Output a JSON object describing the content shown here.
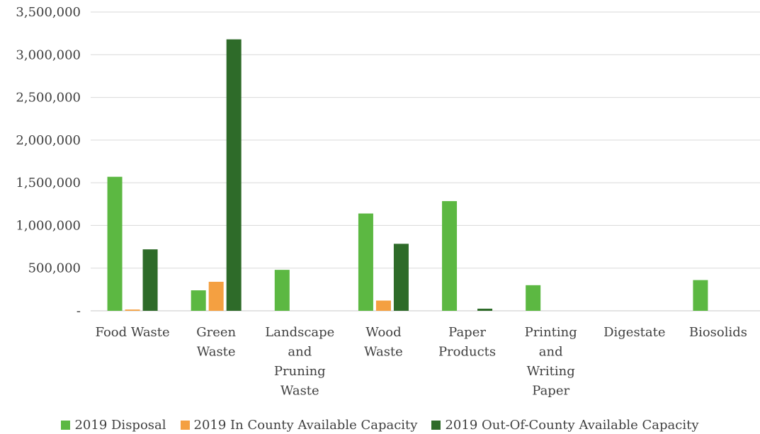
{
  "chart_data": {
    "type": "bar",
    "title": "",
    "xlabel": "",
    "ylabel": "",
    "categories": [
      [
        "Food Waste"
      ],
      [
        "Green",
        "Waste"
      ],
      [
        "Landscape",
        "and",
        "Pruning",
        "Waste"
      ],
      [
        "Wood",
        "Waste"
      ],
      [
        "Paper",
        "Products"
      ],
      [
        "Printing",
        "and",
        "Writing",
        "Paper"
      ],
      [
        "Digestate"
      ],
      [
        "Biosolids"
      ]
    ],
    "ylim": [
      0,
      3500000
    ],
    "yticks": [
      0,
      500000,
      1000000,
      1500000,
      2000000,
      2500000,
      3000000,
      3500000
    ],
    "ytick_labels": [
      "-",
      "500,000",
      "1,000,000",
      "1,500,000",
      "2,000,000",
      "2,500,000",
      "3,000,000",
      "3,500,000"
    ],
    "grid": "horizontal",
    "legend_position": "bottom",
    "series": [
      {
        "name": "2019 Disposal",
        "color": "#5cb842",
        "values": [
          1570000,
          240000,
          480000,
          1140000,
          1285000,
          300000,
          0,
          360000
        ]
      },
      {
        "name": "2019 In County Available Capacity",
        "color": "#f4a041",
        "values": [
          15000,
          340000,
          0,
          120000,
          0,
          0,
          0,
          0
        ]
      },
      {
        "name": "2019 Out-Of-County Available Capacity",
        "color": "#2e6b29",
        "values": [
          720000,
          3180000,
          0,
          785000,
          25000,
          0,
          0,
          0
        ]
      }
    ]
  }
}
